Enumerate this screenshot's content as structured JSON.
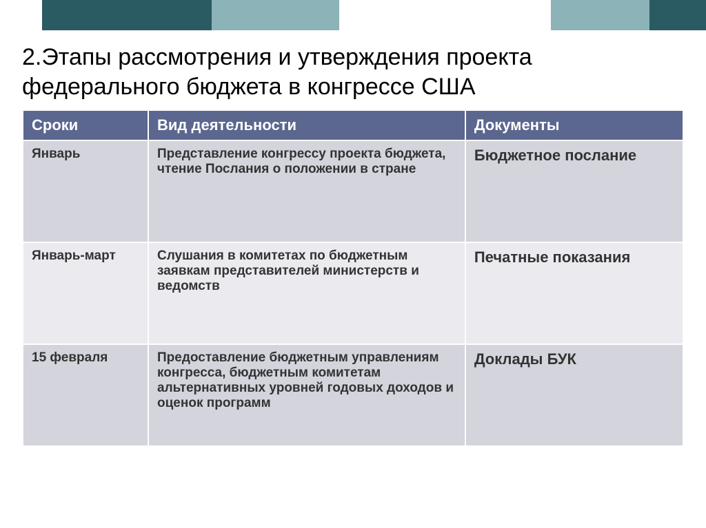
{
  "topBar": {
    "segments": [
      {
        "width": "6%",
        "color": "#ffffff"
      },
      {
        "width": "24%",
        "color": "#2a5a62"
      },
      {
        "width": "18%",
        "color": "#8bb3b8"
      },
      {
        "width": "30%",
        "color": "#ffffff"
      },
      {
        "width": "14%",
        "color": "#8bb3b8"
      },
      {
        "width": "8%",
        "color": "#2a5a62"
      }
    ]
  },
  "title": "2.Этапы рассмотрения и утверждения проекта федерального бюджета в конгрессе США",
  "table": {
    "header_bg": "#5b678f",
    "header_fg": "#ffffff",
    "row_odd_bg": "#d3d4dc",
    "row_even_bg": "#eaeaef",
    "border_color": "#ffffff",
    "columns": [
      "Сроки",
      "Вид  деятельности",
      "Документы"
    ],
    "rows": [
      {
        "period": "Январь",
        "activity": "Представление конгрессу проекта бюджета, чтение Послания о положении в стране",
        "document": "Бюджетное послание"
      },
      {
        "period": "Январь-март",
        "activity": "Слушания в комитетах по бюджетным заявкам представителей министерств и ведомств",
        "document": "Печатные показания"
      },
      {
        "period": "15 февраля",
        "activity": "Предоставление бюджетным управлениям конгресса, бюджетным комитетам альтернативных уровней годовых доходов и оценок программ",
        "document": "Доклады БУК"
      }
    ]
  }
}
